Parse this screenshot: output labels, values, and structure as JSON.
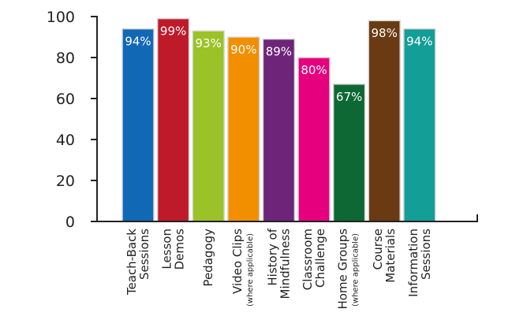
{
  "chart_data": {
    "type": "bar",
    "title": "",
    "xlabel": "",
    "ylabel": "",
    "ylim": [
      0,
      100
    ],
    "yticks": [
      0,
      20,
      40,
      60,
      80,
      100
    ],
    "grid": false,
    "legend": "none",
    "categories": [
      {
        "lines": [
          "Teach-Back",
          "Sessions"
        ],
        "note": ""
      },
      {
        "lines": [
          "Lesson",
          "Demos"
        ],
        "note": ""
      },
      {
        "lines": [
          "Pedagogy"
        ],
        "note": ""
      },
      {
        "lines": [
          "Video Clips"
        ],
        "note": "(where applicable)"
      },
      {
        "lines": [
          "History of",
          "Mindfulness"
        ],
        "note": ""
      },
      {
        "lines": [
          "Classroom",
          "Challenge"
        ],
        "note": ""
      },
      {
        "lines": [
          "Home Groups"
        ],
        "note": "(where applicable)"
      },
      {
        "lines": [
          "Course",
          "Materials"
        ],
        "note": ""
      },
      {
        "lines": [
          "Information",
          "Sessions"
        ],
        "note": ""
      }
    ],
    "values": [
      94,
      99,
      93,
      90,
      89,
      80,
      67,
      98,
      94
    ],
    "value_labels": [
      "94%",
      "99%",
      "93%",
      "90%",
      "89%",
      "80%",
      "67%",
      "98%",
      "94%"
    ],
    "colors": [
      "#1168b5",
      "#be1a2a",
      "#9bc226",
      "#f18f00",
      "#6d2479",
      "#e6007e",
      "#0d6834",
      "#6a3a13",
      "#139e98"
    ]
  }
}
